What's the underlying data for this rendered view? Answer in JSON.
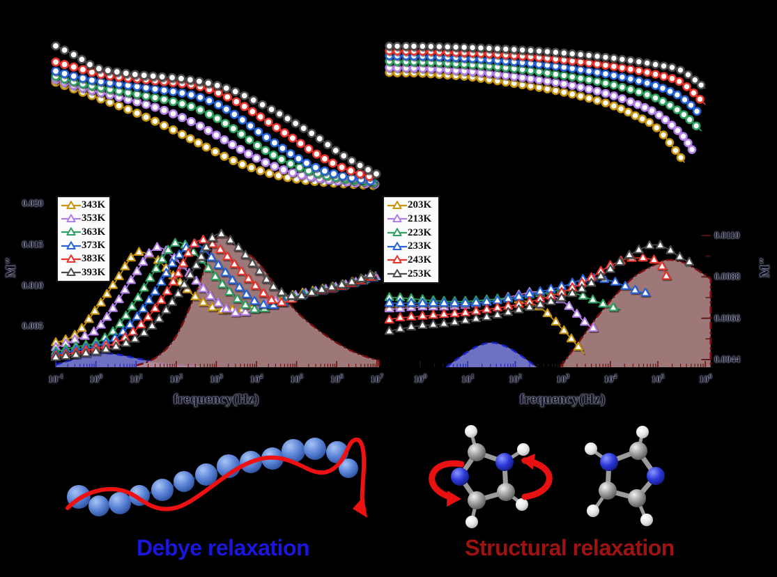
{
  "figure": {
    "background": "#000000"
  },
  "legends": {
    "left": {
      "items": [
        {
          "label": "343K",
          "color": "#C8940E"
        },
        {
          "label": "353K",
          "color": "#B27FE6"
        },
        {
          "label": "363K",
          "color": "#2FA05F"
        },
        {
          "label": "373K",
          "color": "#2563D6"
        },
        {
          "label": "383K",
          "color": "#E8362D"
        },
        {
          "label": "393K",
          "color": "#4D4D4D"
        }
      ]
    },
    "right": {
      "items": [
        {
          "label": "203K",
          "color": "#C8940E"
        },
        {
          "label": "213K",
          "color": "#B27FE6"
        },
        {
          "label": "223K",
          "color": "#2FA05F"
        },
        {
          "label": "233K",
          "color": "#2563D6"
        },
        {
          "label": "243K",
          "color": "#E8362D"
        },
        {
          "label": "253K",
          "color": "#4D4D4D"
        }
      ]
    }
  },
  "axes": {
    "left": {
      "x_label": "frequency(Hz)",
      "y_label": "M″",
      "x_tick_exponents": [
        -1,
        0,
        1,
        2,
        3,
        4,
        5,
        6,
        7
      ],
      "y_ticks": [
        {
          "label": "0.005",
          "value": 0.005
        },
        {
          "label": "0.010",
          "value": 0.01
        },
        {
          "label": "0.015",
          "value": 0.015
        },
        {
          "label": "0.020",
          "value": 0.02
        }
      ]
    },
    "right": {
      "x_label": "frequency(Hz)",
      "y_label": "M″",
      "x_tick_exponents": [
        0,
        1,
        2,
        3,
        4,
        5,
        6
      ],
      "y_ticks": [
        {
          "label": "0.0044",
          "value": 0.0044
        },
        {
          "label": "0.0066",
          "value": 0.0066
        },
        {
          "label": "0.0088",
          "value": 0.0088
        },
        {
          "label": "0.0110",
          "value": 0.011
        }
      ]
    }
  },
  "captions": {
    "debye": {
      "text": "Debye relaxation",
      "color": "#1A16DC"
    },
    "structural": {
      "text": "Structural relaxation",
      "color": "#9E1212"
    }
  },
  "chart_data": [
    {
      "id": "mprime_left",
      "type": "scatter",
      "marker": "circle",
      "x_scale": "log10(frequency/Hz)",
      "x_start": -1,
      "x_step": 0.5,
      "x_range": [
        -1,
        7
      ],
      "y_note": "M' real modulus, arbitrary normalized units (axis labels not visible)",
      "ylim": [
        0,
        1
      ],
      "series": [
        {
          "name": "343K",
          "color": "#C8940E",
          "y": [
            0.72,
            0.67,
            0.62,
            0.57,
            0.515,
            0.455,
            0.39,
            0.32,
            0.25,
            0.185,
            0.135,
            0.096,
            0.07,
            0.053,
            0.042,
            0.033,
            0.026
          ]
        },
        {
          "name": "353K",
          "color": "#B27FE6",
          "y": [
            0.74,
            0.695,
            0.66,
            0.625,
            0.59,
            0.55,
            0.5,
            0.44,
            0.365,
            0.285,
            0.21,
            0.15,
            0.105,
            0.077,
            0.058,
            0.045,
            0.035
          ]
        },
        {
          "name": "363K",
          "color": "#2FA05F",
          "y": [
            0.76,
            0.72,
            0.69,
            0.665,
            0.64,
            0.615,
            0.585,
            0.545,
            0.48,
            0.395,
            0.3,
            0.22,
            0.155,
            0.11,
            0.08,
            0.06,
            0.045
          ]
        },
        {
          "name": "373K",
          "color": "#2563D6",
          "y": [
            0.794,
            0.757,
            0.729,
            0.71,
            0.692,
            0.673,
            0.654,
            0.626,
            0.575,
            0.495,
            0.397,
            0.304,
            0.215,
            0.145,
            0.1,
            0.072,
            0.052
          ]
        },
        {
          "name": "383K",
          "color": "#E8362D",
          "y": [
            0.855,
            0.818,
            0.78,
            0.757,
            0.743,
            0.729,
            0.715,
            0.696,
            0.654,
            0.589,
            0.505,
            0.416,
            0.327,
            0.238,
            0.164,
            0.112,
            0.075
          ]
        },
        {
          "name": "393K",
          "color": "#4D4D4D",
          "y": [
            0.963,
            0.897,
            0.818,
            0.79,
            0.771,
            0.759,
            0.748,
            0.729,
            0.7,
            0.654,
            0.589,
            0.519,
            0.439,
            0.355,
            0.257,
            0.173,
            0.103
          ]
        }
      ]
    },
    {
      "id": "mprime_right",
      "type": "scatter",
      "marker": "circle",
      "x_scale": "log10(frequency/Hz)",
      "x_range": [
        -0.65,
        6.0
      ],
      "y_note": "M' real modulus, arbitrary normalized units (axis labels not visible)",
      "ylim": [
        0,
        1
      ],
      "series": [
        {
          "name": "203K",
          "color": "#C8940E",
          "x": [
            -0.65,
            -0.5,
            0,
            0.5,
            1,
            1.5,
            2,
            2.5,
            3,
            3.5,
            4,
            4.5,
            5,
            5.56
          ],
          "y": [
            0.768,
            0.765,
            0.763,
            0.75,
            0.737,
            0.712,
            0.684,
            0.655,
            0.621,
            0.578,
            0.526,
            0.447,
            0.342,
            0.089
          ]
        },
        {
          "name": "213K",
          "color": "#B27FE6",
          "x": [
            -0.65,
            -0.5,
            0,
            0.5,
            1,
            1.5,
            2,
            2.5,
            3,
            3.5,
            4,
            4.5,
            5,
            5.5,
            5.73
          ],
          "y": [
            0.805,
            0.803,
            0.8,
            0.79,
            0.778,
            0.76,
            0.737,
            0.712,
            0.684,
            0.647,
            0.6,
            0.537,
            0.453,
            0.3,
            0.179
          ]
        },
        {
          "name": "223K",
          "color": "#2FA05F",
          "x": [
            -0.65,
            -0.5,
            0,
            0.5,
            1,
            1.5,
            2,
            2.5,
            3,
            3.5,
            4,
            4.5,
            5,
            5.5,
            5.92
          ],
          "y": [
            0.853,
            0.851,
            0.848,
            0.84,
            0.829,
            0.815,
            0.797,
            0.774,
            0.747,
            0.716,
            0.679,
            0.632,
            0.568,
            0.463,
            0.326
          ]
        },
        {
          "name": "233K",
          "color": "#2563D6",
          "x": [
            -0.65,
            -0.5,
            0,
            0.5,
            1,
            1.5,
            2,
            2.5,
            3,
            3.5,
            4,
            4.5,
            5,
            5.5,
            5.87
          ],
          "y": [
            0.895,
            0.894,
            0.891,
            0.885,
            0.876,
            0.864,
            0.849,
            0.831,
            0.809,
            0.782,
            0.751,
            0.713,
            0.663,
            0.58,
            0.458
          ]
        },
        {
          "name": "243K",
          "color": "#E8362D",
          "x": [
            -0.65,
            -0.5,
            0,
            0.5,
            1,
            1.5,
            2,
            2.5,
            3,
            3.5,
            4,
            4.5,
            5,
            5.5,
            6.0
          ],
          "y": [
            0.932,
            0.931,
            0.929,
            0.924,
            0.917,
            0.908,
            0.896,
            0.882,
            0.864,
            0.843,
            0.818,
            0.788,
            0.75,
            0.69,
            0.526
          ]
        },
        {
          "name": "253K",
          "color": "#4D4D4D",
          "x": [
            -0.65,
            -0.5,
            0,
            0.5,
            1,
            1.5,
            2,
            2.5,
            3,
            3.5,
            4,
            4.5,
            5,
            5.5,
            6.0
          ],
          "y": [
            0.968,
            0.967,
            0.966,
            0.962,
            0.957,
            0.95,
            0.941,
            0.93,
            0.916,
            0.899,
            0.879,
            0.855,
            0.825,
            0.782,
            0.647
          ]
        }
      ]
    },
    {
      "id": "mpp_left",
      "type": "scatter",
      "marker": "triangle",
      "x_scale": "log10(frequency/Hz)",
      "xlabel": "frequency(Hz)",
      "ylabel": "M″",
      "x_start": -1,
      "x_step": 0.5,
      "x_range": [
        -1,
        7.1
      ],
      "ylim": [
        0,
        0.0205
      ],
      "yticks": [
        0.005,
        0.01,
        0.015,
        0.02
      ],
      "series": [
        {
          "name": "343K",
          "color": "#C8940E",
          "y": [
            0.003,
            0.004,
            0.007,
            0.0105,
            0.0139,
            0.0132,
            0.0108,
            0.0085,
            0.0071,
            0.007,
            0.0073,
            0.0082,
            0.0089,
            0.0094,
            0.0099,
            0.0105,
            0.0112
          ]
        },
        {
          "name": "353K",
          "color": "#B27FE6",
          "y": [
            0.0024,
            0.0034,
            0.0045,
            0.0077,
            0.0115,
            0.0146,
            0.0131,
            0.0105,
            0.008,
            0.0066,
            0.0072,
            0.0081,
            0.0088,
            0.0093,
            0.0098,
            0.0104,
            0.0111
          ]
        },
        {
          "name": "363K",
          "color": "#2FA05F",
          "y": [
            0.0019,
            0.0025,
            0.003,
            0.0047,
            0.0081,
            0.012,
            0.0152,
            0.0137,
            0.0109,
            0.0084,
            0.007,
            0.0078,
            0.0087,
            0.0092,
            0.0097,
            0.0103,
            0.011
          ]
        },
        {
          "name": "373K",
          "color": "#2563D6",
          "y": [
            0.0016,
            0.0021,
            0.0026,
            0.0036,
            0.006,
            0.0094,
            0.0133,
            0.015,
            0.0127,
            0.0101,
            0.0079,
            0.0076,
            0.0086,
            0.0091,
            0.0096,
            0.0103,
            0.011
          ]
        },
        {
          "name": "383K",
          "color": "#E8362D",
          "y": [
            0.0014,
            0.0018,
            0.0023,
            0.003,
            0.0046,
            0.0073,
            0.011,
            0.0153,
            0.0147,
            0.0123,
            0.0098,
            0.0079,
            0.0085,
            0.0092,
            0.0097,
            0.0104,
            0.0112
          ]
        },
        {
          "name": "393K",
          "color": "#4D4D4D",
          "y": [
            0.0012,
            0.0015,
            0.0019,
            0.0025,
            0.0035,
            0.0055,
            0.0086,
            0.0124,
            0.0162,
            0.0148,
            0.0121,
            0.0095,
            0.0086,
            0.0093,
            0.0099,
            0.0106,
            0.0116
          ]
        }
      ],
      "fits": [
        {
          "name": "Debye relaxation fit",
          "fill": "#8387E6",
          "stroke": "#1822CC",
          "dash": "9 6",
          "x": [
            -1,
            -0.6,
            -0.2,
            0.2,
            0.6,
            1.0,
            1.5,
            2.0,
            2.6
          ],
          "y": [
            0.0003,
            0.0009,
            0.0014,
            0.0017,
            0.0015,
            0.0011,
            0.0006,
            0.0003,
            0.0001
          ]
        },
        {
          "name": "Structural relaxation fit",
          "fill": "#BC8F8F",
          "stroke": "#7C1010",
          "dash": "11 4 3 4",
          "x": [
            1.0,
            1.5,
            2.0,
            2.5,
            3.05,
            3.5,
            4.0,
            4.5,
            5.0,
            5.5,
            6.0,
            6.5,
            7.05
          ],
          "y": [
            0.0002,
            0.0012,
            0.0038,
            0.0092,
            0.016,
            0.0147,
            0.013,
            0.0098,
            0.0068,
            0.0047,
            0.003,
            0.0017,
            0.0008
          ]
        }
      ]
    },
    {
      "id": "mpp_right",
      "type": "scatter",
      "marker": "triangle",
      "x_scale": "log10(frequency/Hz)",
      "xlabel": "frequency(Hz)",
      "ylabel": "M″",
      "x_range": [
        -0.65,
        6.1
      ],
      "ylim": [
        0.004,
        0.0114
      ],
      "yticks": [
        0.0044,
        0.0066,
        0.0088,
        0.011
      ],
      "series": [
        {
          "name": "203K",
          "color": "#C8940E",
          "x": [
            -0.65,
            -0.5,
            0,
            0.5,
            1,
            1.5,
            2,
            2.5,
            3,
            3.45
          ],
          "y": [
            0.0072,
            0.0072,
            0.0073,
            0.0073,
            0.0074,
            0.0075,
            0.0076,
            0.0072,
            0.006,
            0.0047
          ]
        },
        {
          "name": "213K",
          "color": "#B27FE6",
          "x": [
            -0.65,
            -0.5,
            0,
            0.5,
            1,
            1.5,
            2,
            2.5,
            3,
            3.5,
            3.7
          ],
          "y": [
            0.0071,
            0.0071,
            0.0072,
            0.0072,
            0.0073,
            0.0075,
            0.0078,
            0.008,
            0.0075,
            0.0063,
            0.006
          ]
        },
        {
          "name": "223K",
          "color": "#2FA05F",
          "x": [
            -0.65,
            -0.5,
            0,
            0.5,
            1,
            1.5,
            2,
            2.5,
            3,
            3.5,
            4,
            4.2
          ],
          "y": [
            0.0077,
            0.0077,
            0.0076,
            0.0075,
            0.0075,
            0.0076,
            0.0077,
            0.0079,
            0.0081,
            0.0077,
            0.0072,
            0.0071
          ]
        },
        {
          "name": "233K",
          "color": "#2563D6",
          "x": [
            -0.65,
            -0.5,
            0,
            0.5,
            1,
            1.5,
            2,
            2.5,
            3,
            3.5,
            4,
            4.5,
            4.8
          ],
          "y": [
            0.0074,
            0.0074,
            0.0074,
            0.0074,
            0.0074,
            0.0075,
            0.0077,
            0.008,
            0.0083,
            0.0087,
            0.0086,
            0.0081,
            0.0079
          ]
        },
        {
          "name": "243K",
          "color": "#E8362D",
          "x": [
            -0.65,
            -0.5,
            0,
            0.5,
            1,
            1.5,
            2,
            2.5,
            3,
            3.5,
            4,
            4.5,
            5,
            5.2
          ],
          "y": [
            0.0065,
            0.0066,
            0.0067,
            0.0068,
            0.0069,
            0.0071,
            0.0073,
            0.0076,
            0.008,
            0.0086,
            0.0094,
            0.0098,
            0.0096,
            0.0087
          ]
        },
        {
          "name": "253K",
          "color": "#4D4D4D",
          "x": [
            -0.65,
            -0.5,
            0,
            0.5,
            1,
            1.5,
            2,
            2.5,
            3,
            3.5,
            4,
            4.5,
            5,
            5.5,
            5.72
          ],
          "y": [
            0.0059,
            0.006,
            0.0062,
            0.0063,
            0.0065,
            0.0067,
            0.007,
            0.0073,
            0.0077,
            0.0083,
            0.0092,
            0.0101,
            0.0105,
            0.0098,
            0.0095
          ]
        }
      ],
      "fits": [
        {
          "name": "Debye relaxation fit",
          "fill": "#8387E6",
          "stroke": "#1822CC",
          "dash": "9 6",
          "x": [
            0.55,
            0.9,
            1.2,
            1.5,
            1.8,
            2.1,
            2.45
          ],
          "y": [
            0.004,
            0.00465,
            0.0051,
            0.0053,
            0.0051,
            0.00465,
            0.004
          ]
        },
        {
          "name": "Structural relaxation fit",
          "fill": "#BC8F8F",
          "stroke": "#7C1010",
          "dash": "11 4 3 4",
          "x": [
            2.95,
            3.3,
            3.7,
            4.1,
            4.5,
            4.9,
            5.2,
            5.6,
            6.11
          ],
          "y": [
            0.004,
            0.0052,
            0.0066,
            0.0078,
            0.0088,
            0.0094,
            0.0097,
            0.0095,
            0.0087
          ]
        }
      ]
    }
  ]
}
